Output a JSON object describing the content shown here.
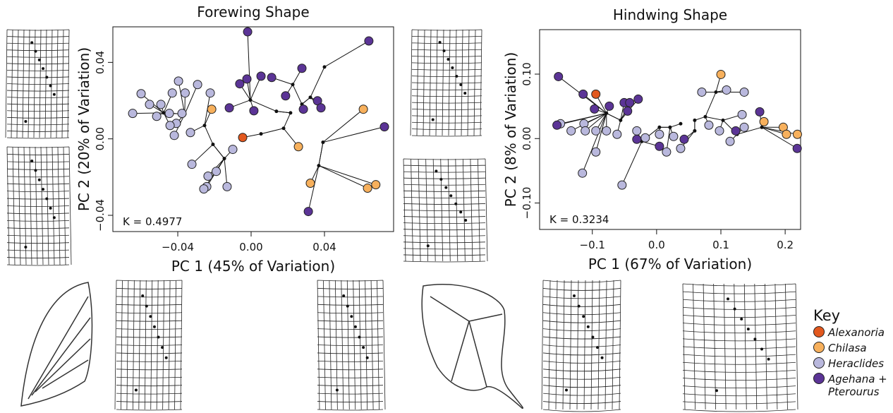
{
  "legend_title": "Key",
  "groups": [
    {
      "name": "Alexanoria",
      "color": "#e2581e"
    },
    {
      "name": "Chilasa",
      "color": "#f7b05c"
    },
    {
      "name": "Heraclides",
      "color": "#b9b8dd"
    },
    {
      "name": "Agehana + Pterourus",
      "color": "#5b3496"
    }
  ],
  "chart_data": [
    {
      "type": "scatter",
      "title": "Forewing Shape",
      "x_label": "PC 1 (45% of Variation)",
      "y_label": "PC 2 (20% of Variation)",
      "annotation": "K = 0.4977",
      "xlim": [
        -0.0754,
        0.0777
      ],
      "ylim": [
        -0.0485,
        0.0586
      ],
      "xticks": [
        {
          "value": -0.04,
          "label": "−0.04"
        },
        {
          "value": 0,
          "label": "0.00"
        },
        {
          "value": 0.04,
          "label": "0.04"
        }
      ],
      "yticks": [
        {
          "value": -0.04,
          "label": "−0.04"
        },
        {
          "value": 0,
          "label": "0.00"
        },
        {
          "value": 0.04,
          "label": "0.04"
        }
      ],
      "node_color": "#111111",
      "series": [
        {
          "x": [
            -0.0046
          ],
          "y": [
            0.0007
          ]
        },
        {
          "x": [
            -0.0215,
            0.0258,
            0.0612,
            0.0323,
            0.068,
            0.0635
          ],
          "y": [
            0.0155,
            -0.0041,
            0.0155,
            -0.0232,
            -0.024,
            -0.0258
          ]
        },
        {
          "x": [
            -0.06,
            -0.0646,
            -0.0554,
            -0.0492,
            -0.043,
            -0.0396,
            -0.036,
            -0.0292,
            -0.0223,
            -0.0446,
            -0.0377,
            -0.0408,
            -0.0331,
            -0.0419,
            -0.0323,
            -0.0235,
            -0.019,
            -0.0242,
            -0.0258,
            -0.0131,
            -0.01,
            -0.0442,
            -0.0515
          ],
          "y": [
            0.0236,
            0.0133,
            0.018,
            0.018,
            0.024,
            0.0302,
            0.024,
            0.0284,
            0.024,
            0.0133,
            0.0133,
            0.0081,
            0.0033,
            0.0018,
            -0.0133,
            -0.0195,
            -0.017,
            -0.025,
            -0.0262,
            -0.025,
            -0.0055,
            0.007,
            0.0118
          ]
        },
        {
          "x": [
            -0.0019,
            -0.0062,
            -0.0023,
            0.0054,
            0.0112,
            0.0188,
            0.0277,
            0.0642,
            0.0362,
            0.0381,
            -0.0119,
            0.0015,
            0.0285,
            0.0727,
            0.0312
          ],
          "y": [
            0.056,
            0.0288,
            0.0313,
            0.0328,
            0.0321,
            0.0225,
            0.0369,
            0.0512,
            0.0199,
            0.0162,
            0.0162,
            0.0147,
            0.0155,
            0.0063,
            -0.038
          ]
        }
      ],
      "nodes": {
        "x": [
          -0.0477,
          -0.0362,
          -0.0254,
          -0.0208,
          -0.0146,
          0.0054,
          0.0177,
          0.0215,
          0.0277,
          0.0323,
          0.0227,
          0.04,
          -0.0004,
          0.0392,
          0.0369,
          0.0138
        ],
        "y": [
          0.0136,
          0.0129,
          0.007,
          -0.0029,
          -0.0103,
          0.0026,
          0.0055,
          0.0136,
          0.0181,
          0.0217,
          0.0284,
          0.0376,
          0.0203,
          -0.0018,
          -0.014,
          0.0144
        ]
      }
    },
    {
      "type": "scatter",
      "title": "Hindwing Shape",
      "x_label": "PC 1 (67% of Variation)",
      "y_label": "PC 2 (8% of Variation)",
      "annotation": "K = 0.3234",
      "xlim": [
        -0.182,
        0.224
      ],
      "ylim": [
        -0.141,
        0.169
      ],
      "xticks": [
        {
          "value": -0.1,
          "label": "−0.1"
        },
        {
          "value": 0,
          "label": "0.0"
        },
        {
          "value": 0.1,
          "label": "0.1"
        },
        {
          "value": 0.2,
          "label": "0.2"
        }
      ],
      "yticks": [
        {
          "value": -0.1,
          "label": "−0.10"
        },
        {
          "value": 0,
          "label": "0.00"
        },
        {
          "value": 0.1,
          "label": "0.10"
        }
      ],
      "node_color": "#111111",
      "series": [
        {
          "x": [
            -0.0945
          ],
          "y": [
            0.0689
          ]
        },
        {
          "x": [
            0.1,
            0.167,
            0.197,
            0.202,
            0.219
          ],
          "y": [
            0.0995,
            0.0262,
            0.0175,
            0.0066,
            0.0066
          ]
        },
        {
          "x": [
            0.0703,
            0.1088,
            0.1363,
            -0.1495,
            -0.133,
            -0.113,
            -0.111,
            -0.0945,
            -0.078,
            -0.0615,
            -0.0945,
            -0.1154,
            -0.0538,
            -0.0308,
            -0.0176,
            0.0044,
            0.0264,
            0.0154,
            0.0374,
            0.0813,
            0.0978,
            0.133,
            0.1143,
            0.1363
          ],
          "y": [
            0.0721,
            0.0754,
            0.0721,
            0.023,
            0.012,
            0.023,
            0.012,
            0.012,
            0.012,
            0.0066,
            -0.0208,
            -0.0536,
            -0.0721,
            0.012,
            0.0011,
            0.0066,
            0.0033,
            -0.0208,
            -0.0153,
            0.0208,
            0.012,
            0.0372,
            -0.0044,
            0.0175
          ]
        },
        {
          "x": [
            -0.1527,
            -0.1143,
            -0.0967,
            -0.0736,
            -0.0505,
            -0.0286,
            -0.0418,
            -0.0451,
            -0.155,
            0.1604,
            0.2187,
            -0.0308,
            0.0044,
            0.0429,
            0.1231
          ],
          "y": [
            0.0962,
            0.0689,
            0.0459,
            0.0503,
            0.0557,
            0.0612,
            0.0557,
            0.0426,
            0.0208,
            0.0415,
            -0.0153,
            -0.0011,
            -0.012,
            -0.0011,
            0.012
          ]
        }
      ],
      "nodes": {
        "x": [
          0.0923,
          0.0758,
          0.1033,
          0.1253,
          0.0209,
          0.0374,
          0.0044,
          -0.0231,
          -0.056,
          0.1637,
          -0.078,
          0.0593,
          0.0593
        ],
        "y": [
          0.0721,
          0.0339,
          0.0284,
          0.0066,
          0.0175,
          0.023,
          0.0175,
          -0.0044,
          0.0284,
          0.0175,
          0.0393,
          0.012,
          0.0284
        ]
      }
    }
  ]
}
